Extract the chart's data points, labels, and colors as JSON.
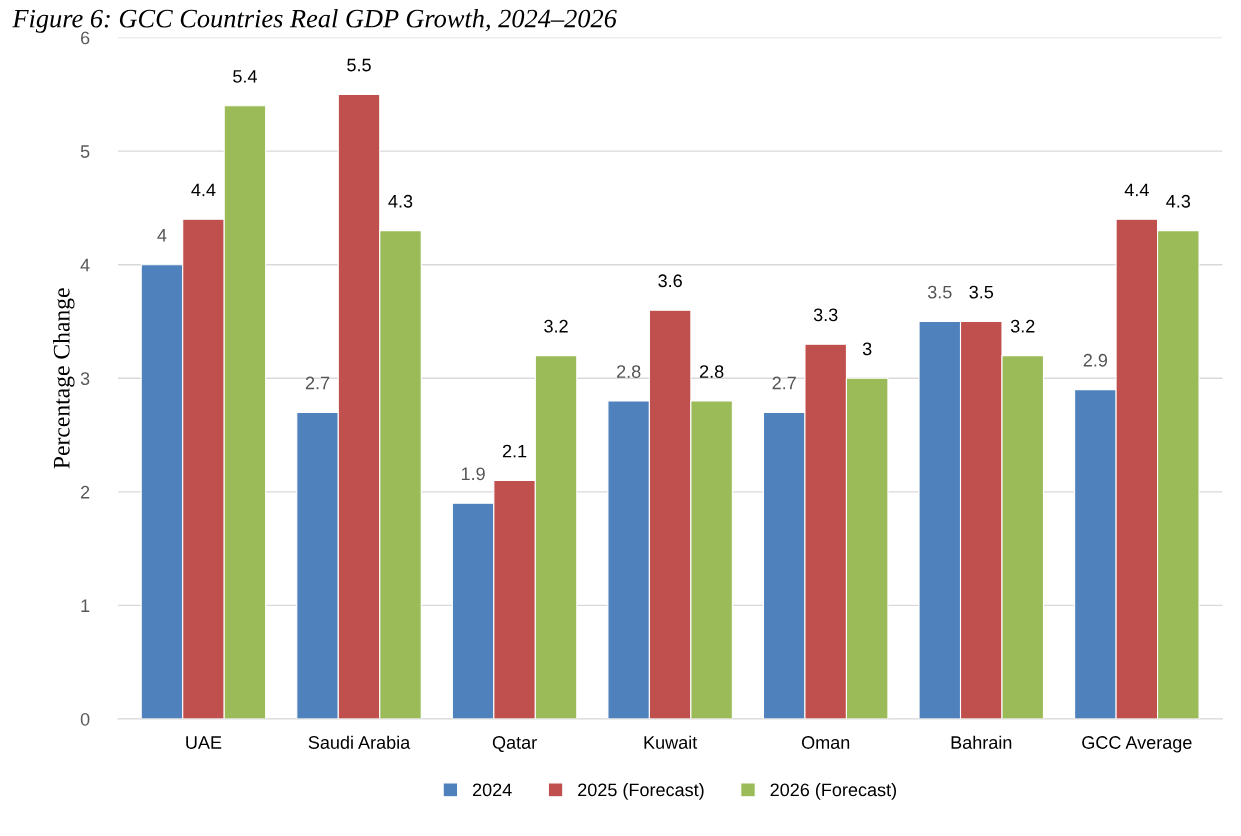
{
  "chart_data": {
    "type": "bar",
    "title": "Figure 6: GCC Countries Real GDP Growth, 2024–2026",
    "ylabel": "Percentage Change",
    "categories": [
      "UAE",
      "Saudi Arabia",
      "Qatar",
      "Kuwait",
      "Oman",
      "Bahrain",
      "GCC Average"
    ],
    "series": [
      {
        "name": "2024",
        "color": "#4f81bd",
        "values": [
          4,
          2.7,
          1.9,
          2.8,
          2.7,
          3.5,
          2.9
        ]
      },
      {
        "name": "2025 (Forecast)",
        "color": "#c0504d",
        "values": [
          4.4,
          5.5,
          2.1,
          3.6,
          3.3,
          3.5,
          4.4
        ]
      },
      {
        "name": "2026 (Forecast)",
        "color": "#9bbb59",
        "values": [
          5.4,
          4.3,
          3.2,
          2.8,
          3,
          3.2,
          4.3
        ]
      }
    ],
    "ylim": [
      0,
      6
    ],
    "yticks": [
      0,
      1,
      2,
      3,
      4,
      5,
      6
    ],
    "grid": "y",
    "legend": "bottom",
    "data_labels": true
  }
}
